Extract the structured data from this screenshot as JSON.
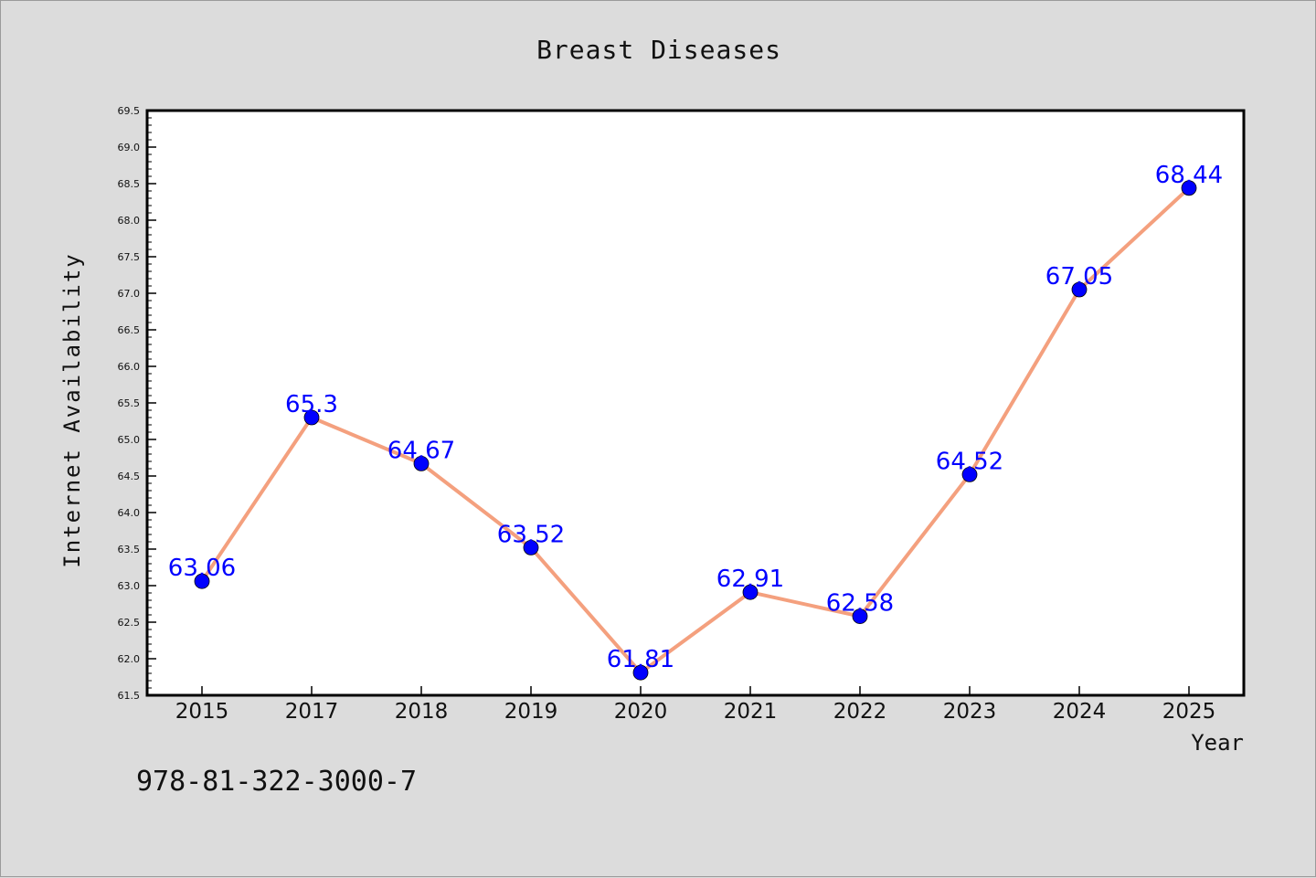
{
  "chart_data": {
    "type": "line",
    "title": "Breast Diseases",
    "xlabel": "Year",
    "ylabel": "Internet Availability",
    "categories": [
      "2015",
      "2017",
      "2018",
      "2019",
      "2020",
      "2021",
      "2022",
      "2023",
      "2024",
      "2025"
    ],
    "series": [
      {
        "values": [
          63.06,
          65.3,
          64.67,
          63.52,
          61.81,
          62.91,
          62.58,
          64.52,
          67.05,
          68.44
        ]
      }
    ],
    "data_labels": [
      "63.06",
      "65.3",
      "64.67",
      "63.52",
      "61.81",
      "62.91",
      "62.58",
      "64.52",
      "67.05",
      "68.44"
    ],
    "ylim": [
      61.5,
      69.5
    ],
    "yticks": [
      "61.5",
      "62.0",
      "62.5",
      "63.0",
      "63.5",
      "64.0",
      "64.5",
      "65.0",
      "65.5",
      "66.0",
      "66.5",
      "67.0",
      "67.5",
      "68.0",
      "68.5",
      "69.0",
      "69.5"
    ],
    "grid": false,
    "line_color": "#f4a07e",
    "marker_color": "#0000ff",
    "label_color": "#0000ff",
    "background": "#dcdcdc",
    "plot_background": "#ffffff"
  },
  "annotation": "978-81-322-3000-7"
}
